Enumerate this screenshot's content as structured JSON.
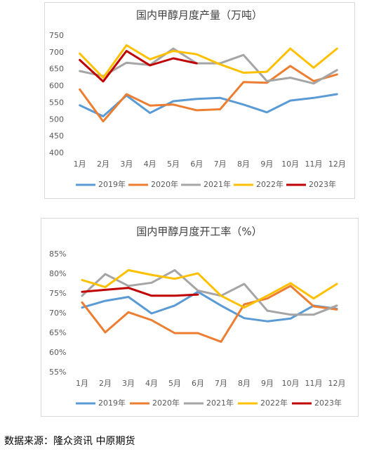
{
  "charts": [
    {
      "type": "line",
      "title": "国内甲醇月度产量（万吨）",
      "categories": [
        "1月",
        "2月",
        "3月",
        "4月",
        "5月",
        "6月",
        "7月",
        "8月",
        "9月",
        "10月",
        "11月",
        "12月"
      ],
      "ylim": [
        400,
        750
      ],
      "yticks": [
        400,
        450,
        500,
        550,
        600,
        650,
        700,
        750
      ],
      "grid": false,
      "legend": "bottom",
      "series": [
        {
          "name": "2019年",
          "color": "#5b9bd5",
          "values": [
            543,
            510,
            572,
            520,
            555,
            562,
            565,
            545,
            522,
            557,
            565,
            576
          ]
        },
        {
          "name": "2020年",
          "color": "#ed7d31",
          "values": [
            590,
            495,
            576,
            542,
            545,
            528,
            531,
            612,
            610,
            660,
            615,
            635
          ]
        },
        {
          "name": "2021年",
          "color": "#a5a5a5",
          "values": [
            645,
            630,
            670,
            663,
            712,
            668,
            668,
            693,
            615,
            625,
            608,
            648
          ]
        },
        {
          "name": "2022年",
          "color": "#ffc000",
          "values": [
            697,
            625,
            722,
            680,
            705,
            695,
            665,
            640,
            643,
            712,
            655,
            712
          ]
        },
        {
          "name": "2023年",
          "color": "#c00000",
          "values": [
            678,
            614,
            705,
            662,
            683,
            668,
            null,
            null,
            null,
            null,
            null,
            null
          ]
        }
      ]
    },
    {
      "type": "line",
      "title": "国内甲醇月度开工率（%）",
      "categories": [
        "1月",
        "2月",
        "3月",
        "4月",
        "5月",
        "6月",
        "7月",
        "8月",
        "9月",
        "10月",
        "11月",
        "12月"
      ],
      "ylim": [
        55,
        85
      ],
      "yticks": [
        {
          "value": 55,
          "label": "55%"
        },
        {
          "value": 60,
          "label": "60%"
        },
        {
          "value": 65,
          "label": "65%"
        },
        {
          "value": 70,
          "label": "70%"
        },
        {
          "value": 75,
          "label": "75%"
        },
        {
          "value": 80,
          "label": "80%"
        },
        {
          "value": 85,
          "label": "85%"
        }
      ],
      "grid": false,
      "legend": "bottom",
      "series": [
        {
          "name": "2019年",
          "color": "#5b9bd5",
          "values": [
            71.5,
            73.2,
            74.2,
            70,
            72,
            75.5,
            72,
            68.8,
            68,
            68.7,
            72,
            71.2
          ]
        },
        {
          "name": "2020年",
          "color": "#ed7d31",
          "values": [
            72.8,
            65.2,
            70.3,
            68.3,
            65,
            65,
            62.8,
            72.3,
            73.8,
            77,
            71.8,
            71
          ]
        },
        {
          "name": "2021年",
          "color": "#a5a5a5",
          "values": [
            74.5,
            80,
            77,
            77.8,
            81,
            75.8,
            74.5,
            77.5,
            70.7,
            69.7,
            69.7,
            72
          ]
        },
        {
          "name": "2022年",
          "color": "#ffc000",
          "values": [
            78.5,
            76.7,
            81,
            79.8,
            78.8,
            80.2,
            74.5,
            71.5,
            74.5,
            77.7,
            73.8,
            77.5
          ]
        },
        {
          "name": "2023年",
          "color": "#c00000",
          "values": [
            75.5,
            76,
            76.5,
            74.5,
            74.5,
            74.8,
            null,
            null,
            null,
            null,
            null,
            null
          ]
        }
      ]
    }
  ],
  "source": "数据来源：隆众资讯 中原期货"
}
